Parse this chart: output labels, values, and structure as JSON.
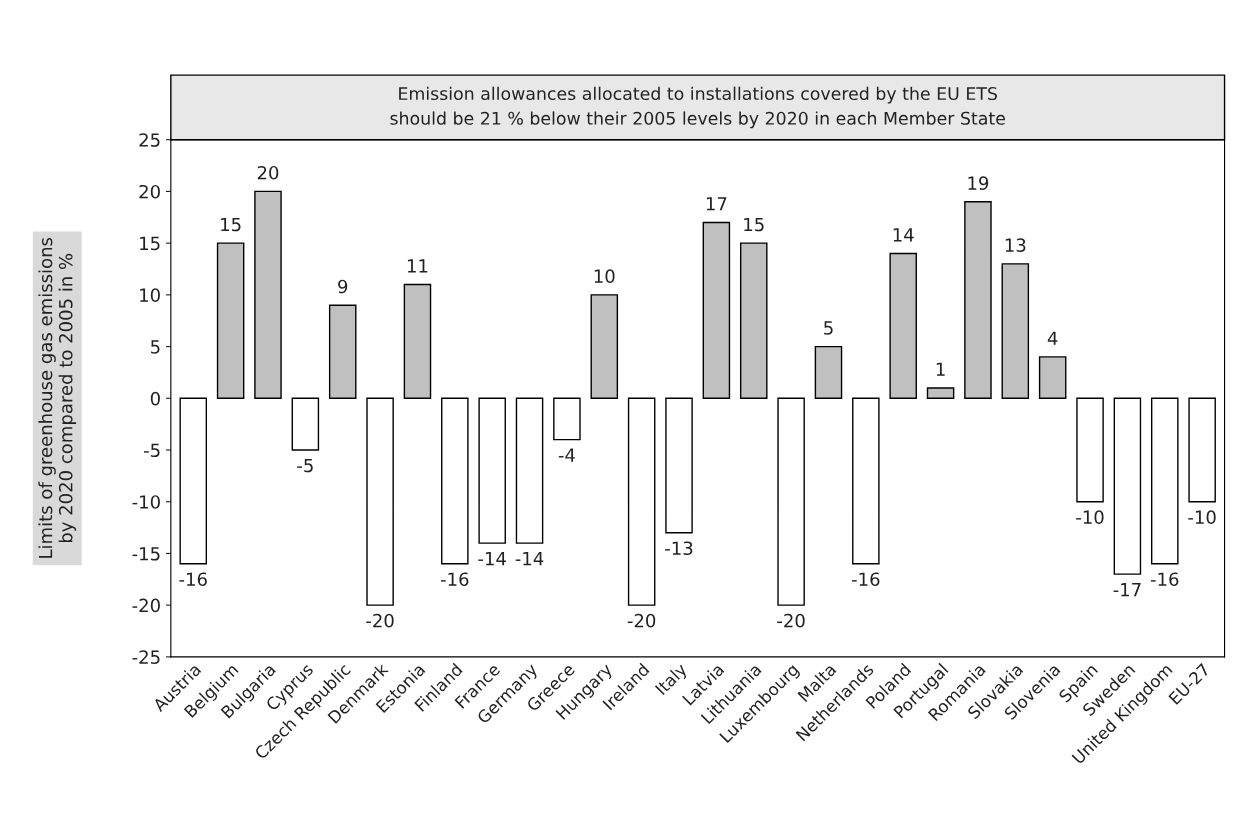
{
  "chart_data": {
    "type": "bar",
    "title": "Emission allowances allocated to installations covered by the EU ETS\nshould be 21 % below their 2005 levels by 2020 in each Member State",
    "ylabel": "Limits of greenhouse gas emissions\nby 2020 compared to 2005 in %",
    "categories": [
      "Austria",
      "Belgium",
      "Bulgaria",
      "Cyprus",
      "Czech Republic",
      "Denmark",
      "Estonia",
      "Finland",
      "France",
      "Germany",
      "Greece",
      "Hungary",
      "Ireland",
      "Italy",
      "Latvia",
      "Lithuania",
      "Luxembourg",
      "Malta",
      "Netherlands",
      "Poland",
      "Portugal",
      "Romania",
      "Slovakia",
      "Slovenia",
      "Spain",
      "Sweden",
      "United Kingdom",
      "EU-27"
    ],
    "values": [
      -16,
      15,
      20,
      -5,
      9,
      -20,
      11,
      -16,
      -14,
      -14,
      -4,
      10,
      -20,
      -13,
      17,
      15,
      -20,
      5,
      -16,
      14,
      1,
      19,
      13,
      4,
      -10,
      -17,
      -16,
      -10
    ],
    "colors": [
      "#ffffff",
      "#c0c0c0",
      "#c0c0c0",
      "#ffffff",
      "#c0c0c0",
      "#ffffff",
      "#c0c0c0",
      "#ffffff",
      "#ffffff",
      "#ffffff",
      "#ffffff",
      "#c0c0c0",
      "#ffffff",
      "#ffffff",
      "#c0c0c0",
      "#c0c0c0",
      "#ffffff",
      "#c0c0c0",
      "#ffffff",
      "#c0c0c0",
      "#c0c0c0",
      "#c0c0c0",
      "#c0c0c0",
      "#c0c0c0",
      "#ffffff",
      "#ffffff",
      "#ffffff",
      "#ffffff"
    ],
    "ylim": [
      -25,
      25
    ],
    "yticks": [
      -25,
      -20,
      -15,
      -10,
      -5,
      0,
      5,
      10,
      15,
      20,
      25
    ],
    "data_labels": true,
    "grid": false,
    "legend": false
  }
}
